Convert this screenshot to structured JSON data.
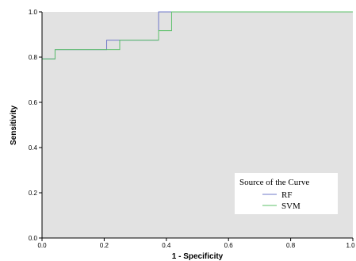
{
  "colors": {
    "plot_background": "#e2e2e2",
    "page_background": "#ffffff",
    "axis": "#000000",
    "legend_background": "#ffffff"
  },
  "chart_data": {
    "type": "line",
    "xlabel": "1 - Specificity",
    "ylabel": "Sensitivity",
    "xlim": [
      0.0,
      1.0
    ],
    "ylim": [
      0.0,
      1.0
    ],
    "xticks": [
      "0.0",
      "0.2",
      "0.4",
      "0.6",
      "0.8",
      "1.0"
    ],
    "yticks": [
      "0.0",
      "0.2",
      "0.4",
      "0.6",
      "0.8",
      "1.0"
    ],
    "grid": false,
    "legend": {
      "title": "Source of the Curve",
      "position": "bottom-right"
    },
    "series": [
      {
        "name": "RF",
        "color": "#6f78c8",
        "x": [
          0.0,
          0.0,
          0.042,
          0.042,
          0.208,
          0.208,
          0.375,
          0.375,
          1.0
        ],
        "y": [
          0.0,
          0.792,
          0.792,
          0.833,
          0.833,
          0.875,
          0.875,
          1.0,
          1.0
        ]
      },
      {
        "name": "SVM",
        "color": "#5cc06a",
        "x": [
          0.0,
          0.0,
          0.042,
          0.042,
          0.25,
          0.25,
          0.375,
          0.375,
          0.417,
          0.417,
          1.0
        ],
        "y": [
          0.0,
          0.792,
          0.792,
          0.833,
          0.833,
          0.875,
          0.875,
          0.917,
          0.917,
          1.0,
          1.0
        ]
      }
    ]
  }
}
